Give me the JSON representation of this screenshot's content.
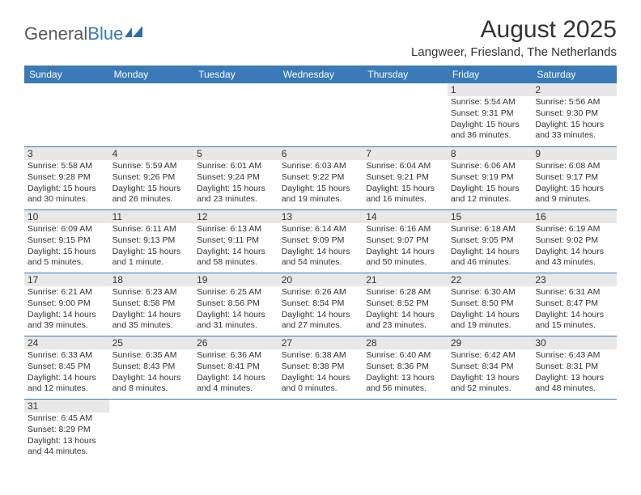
{
  "logo": {
    "text_a": "General",
    "text_b": "Blue"
  },
  "header": {
    "title": "August 2025",
    "location": "Langweer, Friesland, The Netherlands"
  },
  "colors": {
    "header_bg": "#3a7ab8",
    "header_text": "#ffffff",
    "daynum_bg": "#e8e8e8",
    "text": "#333333",
    "rule": "#3a7ab8"
  },
  "days_of_week": [
    "Sunday",
    "Monday",
    "Tuesday",
    "Wednesday",
    "Thursday",
    "Friday",
    "Saturday"
  ],
  "weeks": [
    [
      {
        "n": "",
        "sr": "",
        "ss": "",
        "dl": ""
      },
      {
        "n": "",
        "sr": "",
        "ss": "",
        "dl": ""
      },
      {
        "n": "",
        "sr": "",
        "ss": "",
        "dl": ""
      },
      {
        "n": "",
        "sr": "",
        "ss": "",
        "dl": ""
      },
      {
        "n": "",
        "sr": "",
        "ss": "",
        "dl": ""
      },
      {
        "n": "1",
        "sr": "Sunrise: 5:54 AM",
        "ss": "Sunset: 9:31 PM",
        "dl": "Daylight: 15 hours and 36 minutes."
      },
      {
        "n": "2",
        "sr": "Sunrise: 5:56 AM",
        "ss": "Sunset: 9:30 PM",
        "dl": "Daylight: 15 hours and 33 minutes."
      }
    ],
    [
      {
        "n": "3",
        "sr": "Sunrise: 5:58 AM",
        "ss": "Sunset: 9:28 PM",
        "dl": "Daylight: 15 hours and 30 minutes."
      },
      {
        "n": "4",
        "sr": "Sunrise: 5:59 AM",
        "ss": "Sunset: 9:26 PM",
        "dl": "Daylight: 15 hours and 26 minutes."
      },
      {
        "n": "5",
        "sr": "Sunrise: 6:01 AM",
        "ss": "Sunset: 9:24 PM",
        "dl": "Daylight: 15 hours and 23 minutes."
      },
      {
        "n": "6",
        "sr": "Sunrise: 6:03 AM",
        "ss": "Sunset: 9:22 PM",
        "dl": "Daylight: 15 hours and 19 minutes."
      },
      {
        "n": "7",
        "sr": "Sunrise: 6:04 AM",
        "ss": "Sunset: 9:21 PM",
        "dl": "Daylight: 15 hours and 16 minutes."
      },
      {
        "n": "8",
        "sr": "Sunrise: 6:06 AM",
        "ss": "Sunset: 9:19 PM",
        "dl": "Daylight: 15 hours and 12 minutes."
      },
      {
        "n": "9",
        "sr": "Sunrise: 6:08 AM",
        "ss": "Sunset: 9:17 PM",
        "dl": "Daylight: 15 hours and 9 minutes."
      }
    ],
    [
      {
        "n": "10",
        "sr": "Sunrise: 6:09 AM",
        "ss": "Sunset: 9:15 PM",
        "dl": "Daylight: 15 hours and 5 minutes."
      },
      {
        "n": "11",
        "sr": "Sunrise: 6:11 AM",
        "ss": "Sunset: 9:13 PM",
        "dl": "Daylight: 15 hours and 1 minute."
      },
      {
        "n": "12",
        "sr": "Sunrise: 6:13 AM",
        "ss": "Sunset: 9:11 PM",
        "dl": "Daylight: 14 hours and 58 minutes."
      },
      {
        "n": "13",
        "sr": "Sunrise: 6:14 AM",
        "ss": "Sunset: 9:09 PM",
        "dl": "Daylight: 14 hours and 54 minutes."
      },
      {
        "n": "14",
        "sr": "Sunrise: 6:16 AM",
        "ss": "Sunset: 9:07 PM",
        "dl": "Daylight: 14 hours and 50 minutes."
      },
      {
        "n": "15",
        "sr": "Sunrise: 6:18 AM",
        "ss": "Sunset: 9:05 PM",
        "dl": "Daylight: 14 hours and 46 minutes."
      },
      {
        "n": "16",
        "sr": "Sunrise: 6:19 AM",
        "ss": "Sunset: 9:02 PM",
        "dl": "Daylight: 14 hours and 43 minutes."
      }
    ],
    [
      {
        "n": "17",
        "sr": "Sunrise: 6:21 AM",
        "ss": "Sunset: 9:00 PM",
        "dl": "Daylight: 14 hours and 39 minutes."
      },
      {
        "n": "18",
        "sr": "Sunrise: 6:23 AM",
        "ss": "Sunset: 8:58 PM",
        "dl": "Daylight: 14 hours and 35 minutes."
      },
      {
        "n": "19",
        "sr": "Sunrise: 6:25 AM",
        "ss": "Sunset: 8:56 PM",
        "dl": "Daylight: 14 hours and 31 minutes."
      },
      {
        "n": "20",
        "sr": "Sunrise: 6:26 AM",
        "ss": "Sunset: 8:54 PM",
        "dl": "Daylight: 14 hours and 27 minutes."
      },
      {
        "n": "21",
        "sr": "Sunrise: 6:28 AM",
        "ss": "Sunset: 8:52 PM",
        "dl": "Daylight: 14 hours and 23 minutes."
      },
      {
        "n": "22",
        "sr": "Sunrise: 6:30 AM",
        "ss": "Sunset: 8:50 PM",
        "dl": "Daylight: 14 hours and 19 minutes."
      },
      {
        "n": "23",
        "sr": "Sunrise: 6:31 AM",
        "ss": "Sunset: 8:47 PM",
        "dl": "Daylight: 14 hours and 15 minutes."
      }
    ],
    [
      {
        "n": "24",
        "sr": "Sunrise: 6:33 AM",
        "ss": "Sunset: 8:45 PM",
        "dl": "Daylight: 14 hours and 12 minutes."
      },
      {
        "n": "25",
        "sr": "Sunrise: 6:35 AM",
        "ss": "Sunset: 8:43 PM",
        "dl": "Daylight: 14 hours and 8 minutes."
      },
      {
        "n": "26",
        "sr": "Sunrise: 6:36 AM",
        "ss": "Sunset: 8:41 PM",
        "dl": "Daylight: 14 hours and 4 minutes."
      },
      {
        "n": "27",
        "sr": "Sunrise: 6:38 AM",
        "ss": "Sunset: 8:38 PM",
        "dl": "Daylight: 14 hours and 0 minutes."
      },
      {
        "n": "28",
        "sr": "Sunrise: 6:40 AM",
        "ss": "Sunset: 8:36 PM",
        "dl": "Daylight: 13 hours and 56 minutes."
      },
      {
        "n": "29",
        "sr": "Sunrise: 6:42 AM",
        "ss": "Sunset: 8:34 PM",
        "dl": "Daylight: 13 hours and 52 minutes."
      },
      {
        "n": "30",
        "sr": "Sunrise: 6:43 AM",
        "ss": "Sunset: 8:31 PM",
        "dl": "Daylight: 13 hours and 48 minutes."
      }
    ],
    [
      {
        "n": "31",
        "sr": "Sunrise: 6:45 AM",
        "ss": "Sunset: 8:29 PM",
        "dl": "Daylight: 13 hours and 44 minutes."
      },
      {
        "n": "",
        "sr": "",
        "ss": "",
        "dl": ""
      },
      {
        "n": "",
        "sr": "",
        "ss": "",
        "dl": ""
      },
      {
        "n": "",
        "sr": "",
        "ss": "",
        "dl": ""
      },
      {
        "n": "",
        "sr": "",
        "ss": "",
        "dl": ""
      },
      {
        "n": "",
        "sr": "",
        "ss": "",
        "dl": ""
      },
      {
        "n": "",
        "sr": "",
        "ss": "",
        "dl": ""
      }
    ]
  ]
}
